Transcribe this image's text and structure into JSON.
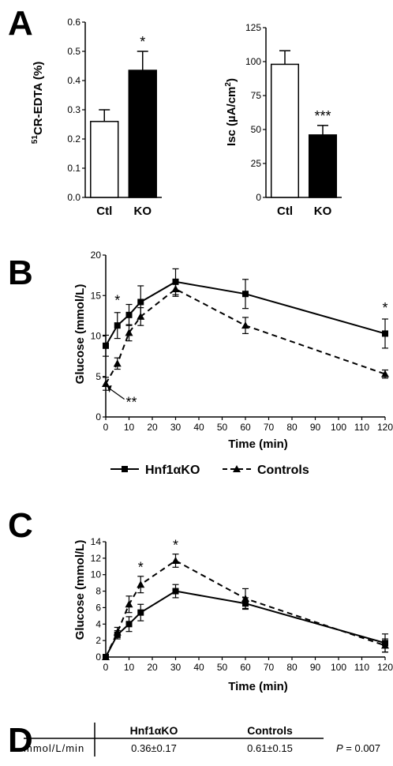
{
  "panels": {
    "a": "A",
    "b": "B",
    "c": "C",
    "d": "D"
  },
  "chart_data": [
    {
      "id": "A1",
      "type": "bar",
      "categories": [
        "Ctl",
        "KO"
      ],
      "values": [
        0.26,
        0.435
      ],
      "errors": [
        0.04,
        0.065
      ],
      "fills": [
        "#ffffff",
        "#000000"
      ],
      "ylabel_sup": "51",
      "ylabel_rest": "CR-EDTA (%)",
      "ylim": [
        0,
        0.6
      ],
      "yticks": [
        "0.0",
        "0.1",
        "0.2",
        "0.3",
        "0.4",
        "0.5",
        "0.6"
      ],
      "annotations": [
        {
          "category": "KO",
          "text": "*"
        }
      ]
    },
    {
      "id": "A2",
      "type": "bar",
      "categories": [
        "Ctl",
        "KO"
      ],
      "values": [
        98,
        46
      ],
      "errors": [
        10,
        7
      ],
      "fills": [
        "#ffffff",
        "#000000"
      ],
      "ylabel_main": "Isc (µA/cm",
      "ylabel_sup": "2",
      "ylabel_end": ")",
      "ylim": [
        0,
        125
      ],
      "yticks": [
        "0",
        "25",
        "50",
        "75",
        "100",
        "125"
      ],
      "annotations": [
        {
          "category": "KO",
          "text": "***"
        }
      ]
    },
    {
      "id": "B",
      "type": "line",
      "xlabel": "Time (min)",
      "ylabel": "Glucose (mmol/L)",
      "xlim": [
        0,
        120
      ],
      "ylim": [
        0,
        20
      ],
      "xticks": [
        "0",
        "10",
        "20",
        "30",
        "40",
        "50",
        "60",
        "70",
        "80",
        "90",
        "100",
        "110",
        "120"
      ],
      "yticks": [
        "0",
        "5",
        "10",
        "15",
        "20"
      ],
      "series": [
        {
          "name": "Hnf1αKO",
          "marker": "square",
          "dash": "solid",
          "x": [
            0,
            5,
            10,
            15,
            30,
            60,
            120
          ],
          "y": [
            8.8,
            11.3,
            12.6,
            14.2,
            16.7,
            15.2,
            10.3
          ],
          "err": [
            1.3,
            1.6,
            1.3,
            2.0,
            1.6,
            1.8,
            1.8
          ]
        },
        {
          "name": "Controls",
          "marker": "triangle",
          "dash": "dashed",
          "x": [
            0,
            5,
            10,
            15,
            30,
            60,
            120
          ],
          "y": [
            4.1,
            6.6,
            10.4,
            12.4,
            15.8,
            11.3,
            5.3
          ],
          "err": [
            0.8,
            0.7,
            1.0,
            1.1,
            0.9,
            1.0,
            0.5
          ]
        }
      ],
      "annotations": [
        {
          "x": 5,
          "y": 13.8,
          "text": "*"
        },
        {
          "x": 120,
          "y": 12.9,
          "text": "*"
        },
        {
          "x": 11,
          "y": 1.2,
          "text": "**"
        }
      ],
      "legend": "bottom"
    },
    {
      "id": "C",
      "type": "line",
      "xlabel": "Time (min)",
      "ylabel": "Glucose (mmol/L)",
      "xlim": [
        0,
        120
      ],
      "ylim": [
        0,
        14
      ],
      "xticks": [
        "0",
        "10",
        "20",
        "30",
        "40",
        "50",
        "60",
        "70",
        "80",
        "90",
        "100",
        "110",
        "120"
      ],
      "yticks": [
        "0",
        "2",
        "4",
        "6",
        "8",
        "10",
        "12",
        "14"
      ],
      "series": [
        {
          "name": "Hnf1αKO",
          "marker": "square",
          "dash": "solid",
          "x": [
            0,
            5,
            10,
            15,
            30,
            60,
            120
          ],
          "y": [
            0,
            2.7,
            4.0,
            5.4,
            8.0,
            6.5,
            1.7
          ],
          "err": [
            0.1,
            0.5,
            0.9,
            1.0,
            0.8,
            0.7,
            1.1
          ]
        },
        {
          "name": "Controls",
          "marker": "triangle",
          "dash": "dashed",
          "x": [
            0,
            5,
            10,
            15,
            30,
            60,
            120
          ],
          "y": [
            0,
            3.0,
            6.4,
            8.8,
            11.7,
            7.1,
            1.4
          ],
          "err": [
            0.1,
            0.6,
            1.0,
            1.0,
            0.8,
            1.2,
            0.8
          ]
        }
      ],
      "annotations": [
        {
          "x": 15,
          "y": 10.3,
          "text": "*"
        },
        {
          "x": 30,
          "y": 13.0,
          "text": "*"
        }
      ]
    }
  ],
  "legend": {
    "ko": "Hnf1αKO",
    "controls": "Controls"
  },
  "table": {
    "col1": "Hnf1αKO",
    "col2": "Controls",
    "row_label": "mmol/L/min",
    "v1": "0.36±0.17",
    "v2": "0.61±0.15",
    "p_label": "P",
    "p_value": " = 0.007"
  }
}
